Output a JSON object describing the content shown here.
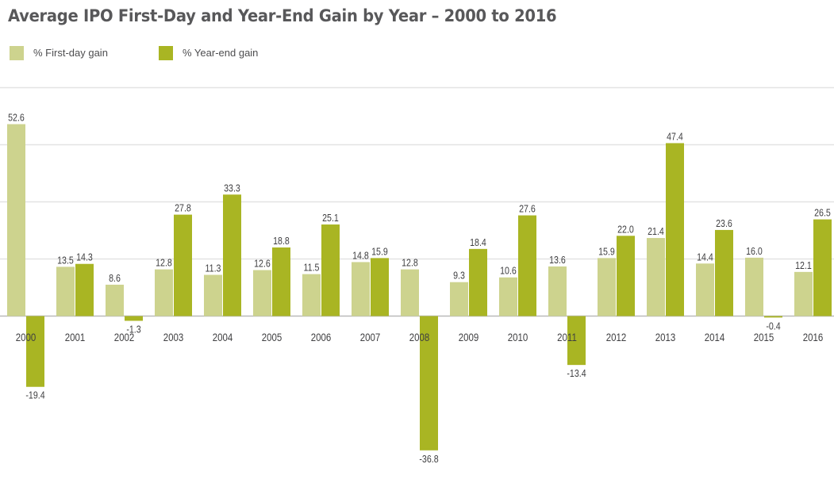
{
  "chart_data": {
    "type": "bar",
    "title": "Average IPO First-Day and Year-End Gain by Year – 2000 to 2016",
    "xlabel": "",
    "ylabel": "",
    "categories": [
      "2000",
      "2001",
      "2002",
      "2003",
      "2004",
      "2005",
      "2006",
      "2007",
      "2008",
      "2009",
      "2010",
      "2011",
      "2012",
      "2013",
      "2014",
      "2015",
      "2016"
    ],
    "series": [
      {
        "name": "% First-day gain",
        "color": "#cdd38e",
        "values": [
          52.6,
          13.5,
          8.6,
          12.8,
          11.3,
          12.6,
          11.5,
          14.8,
          12.8,
          9.3,
          10.6,
          13.6,
          15.9,
          21.4,
          14.4,
          16.0,
          12.1
        ],
        "labels": [
          "52.6",
          "13.5",
          "8.6",
          "12.8",
          "11.3",
          "12.6",
          "11.5",
          "14.8",
          "12.8",
          "9.3",
          "10.6",
          "13.6",
          "15.9",
          "21.4",
          "14.4",
          "16.0",
          "12.1"
        ]
      },
      {
        "name": "% Year-end gain",
        "color": "#a9b523",
        "values": [
          -19.4,
          14.3,
          -1.3,
          27.8,
          33.3,
          18.8,
          25.1,
          15.9,
          -36.8,
          18.4,
          27.6,
          -13.4,
          22.0,
          47.4,
          23.6,
          -0.4,
          26.5
        ],
        "labels": [
          "-19.4",
          "14.3",
          "-1.3",
          "27.8",
          "33.3",
          "18.8",
          "25.1",
          "15.9",
          "-36.8",
          "18.4",
          "27.6",
          "-13.4",
          "22.0",
          "47.4",
          "23.6",
          "-0.4",
          "26.5"
        ]
      }
    ],
    "ylim": [
      -42,
      63
    ],
    "grid": true,
    "gridline_values": [
      15.7,
      31.4,
      47.1,
      62.8
    ],
    "legend_position": "top-left",
    "gridline_color": "#e3e3e3",
    "axis_color": "#b9b9b9",
    "text_color": "#3f3f41",
    "title_color": "#58585a"
  }
}
